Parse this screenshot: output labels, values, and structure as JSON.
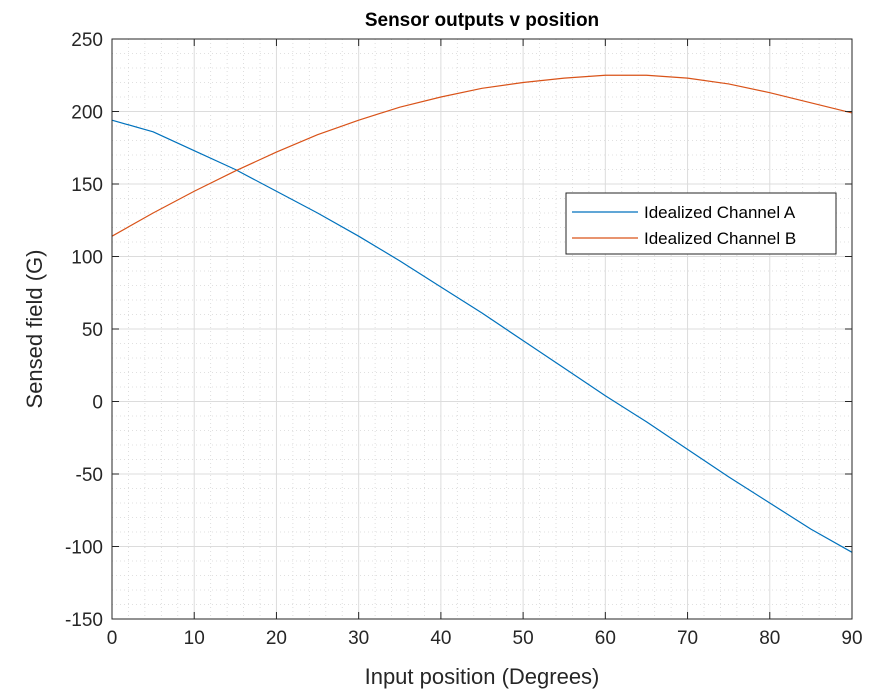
{
  "chart_data": {
    "type": "line",
    "title": "Sensor outputs v position",
    "xlabel": "Input position (Degrees)",
    "ylabel": "Sensed field (G)",
    "xlim": [
      0,
      90
    ],
    "ylim": [
      -150,
      250
    ],
    "xticks": [
      0,
      10,
      20,
      30,
      40,
      50,
      60,
      70,
      80,
      90
    ],
    "yticks": [
      -150,
      -100,
      -50,
      0,
      50,
      100,
      150,
      200,
      250
    ],
    "xtick_labels": [
      "0",
      "10",
      "20",
      "30",
      "40",
      "50",
      "60",
      "70",
      "80",
      "90"
    ],
    "ytick_labels": [
      "-150",
      "-100",
      "-50",
      "0",
      "50",
      "100",
      "150",
      "200",
      "250"
    ],
    "grid": true,
    "minor_grid": true,
    "legend_position": "right",
    "x": [
      0,
      5,
      10,
      15,
      20,
      25,
      30,
      35,
      40,
      45,
      50,
      55,
      60,
      65,
      70,
      75,
      80,
      85,
      90
    ],
    "series": [
      {
        "name": "Idealized Channel A",
        "color": "#0072BD",
        "values": [
          194,
          186,
          173,
          160,
          145,
          130,
          114,
          97,
          79,
          61,
          42,
          23,
          4,
          -14,
          -33,
          -52,
          -70,
          -88,
          -104
        ]
      },
      {
        "name": "Idealized Channel B",
        "color": "#D95319",
        "values": [
          114,
          130,
          145,
          159,
          172,
          184,
          194,
          203,
          210,
          216,
          220,
          223,
          225,
          225,
          223,
          219,
          213,
          206,
          199
        ]
      }
    ]
  }
}
